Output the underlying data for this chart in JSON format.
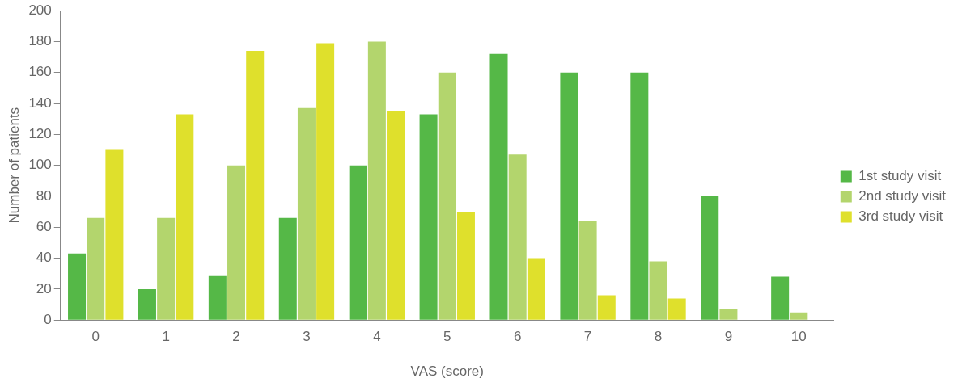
{
  "chart_data": {
    "type": "bar",
    "xlabel": "VAS (score)",
    "ylabel": "Number of patients",
    "categories": [
      "0",
      "1",
      "2",
      "3",
      "4",
      "5",
      "6",
      "7",
      "8",
      "9",
      "10"
    ],
    "series": [
      {
        "name": "1st study visit",
        "color": "#55b847",
        "values": [
          43,
          20,
          29,
          66,
          100,
          133,
          172,
          160,
          160,
          80,
          28
        ]
      },
      {
        "name": "2nd study visit",
        "color": "#b3d56d",
        "values": [
          66,
          66,
          100,
          137,
          180,
          160,
          107,
          64,
          38,
          7,
          5
        ]
      },
      {
        "name": "3rd study visit",
        "color": "#dfe02c",
        "values": [
          110,
          133,
          174,
          179,
          135,
          70,
          40,
          16,
          14,
          0,
          0
        ]
      }
    ],
    "ylim": [
      0,
      200
    ],
    "yticks": [
      0,
      20,
      40,
      60,
      80,
      100,
      120,
      140,
      160,
      180,
      200
    ],
    "grid": false,
    "legend": "right"
  }
}
